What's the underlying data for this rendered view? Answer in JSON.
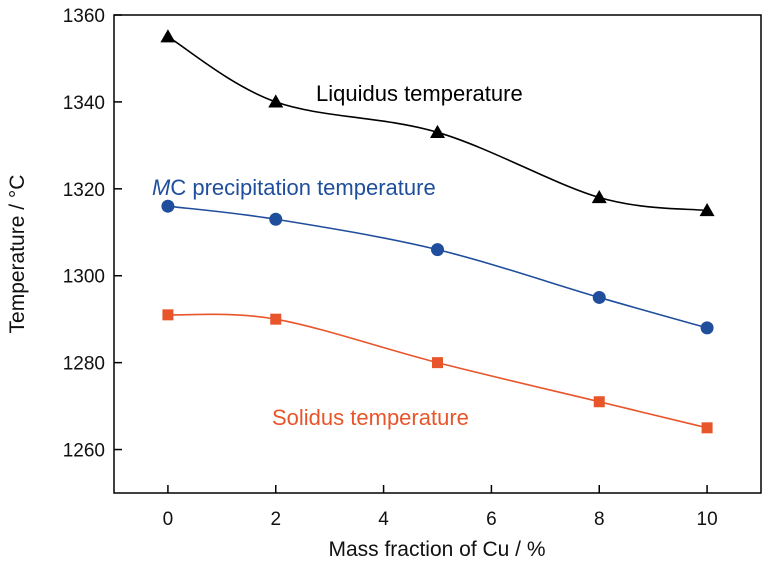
{
  "chart_data": {
    "type": "line",
    "title": "",
    "xlabel": "Mass fraction of Cu / %",
    "ylabel": "Temperature / °C",
    "xlim": [
      -1,
      11
    ],
    "ylim": [
      1250,
      1360
    ],
    "xticks": [
      0,
      2,
      4,
      6,
      8,
      10
    ],
    "yticks": [
      1260,
      1280,
      1300,
      1320,
      1340,
      1360
    ],
    "grid": false,
    "x": [
      0,
      2,
      5,
      8,
      10
    ],
    "series": [
      {
        "name": "Liquidus temperature",
        "marker": "triangle",
        "color": "#000000",
        "values": [
          1355,
          1340,
          1333,
          1318,
          1315
        ]
      },
      {
        "name_italic": "M",
        "name_rest": "C precipitation temperature",
        "marker": "circle",
        "color": "#1f4e9c",
        "values": [
          1316,
          1313,
          1306,
          1295,
          1288
        ]
      },
      {
        "name": "Solidus temperature",
        "marker": "square",
        "color": "#e8552a",
        "values": [
          1291,
          1290,
          1280,
          1271,
          1265
        ]
      }
    ]
  }
}
